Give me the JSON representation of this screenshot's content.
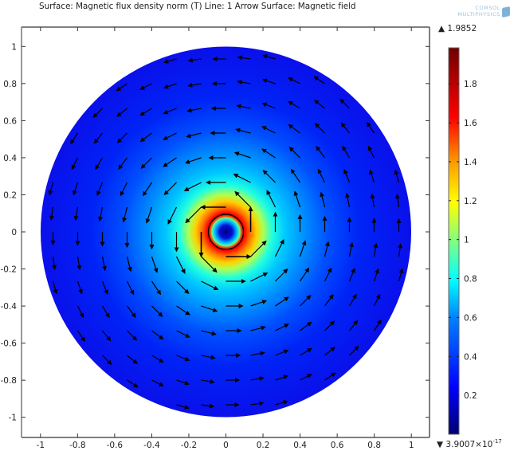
{
  "title": "Surface: Magnetic flux density norm (T)  Line: 1  Arrow Surface: Magnetic field",
  "logo": {
    "line1": "COMSOL",
    "line2": "MULTIPHYSICS"
  },
  "colorbar": {
    "max_label": "1.9852",
    "min_label_mantissa": "3.9007×10",
    "min_label_exponent": "-17",
    "max_marker": "▲",
    "min_marker": "▼",
    "ticks": [
      "0.2",
      "0.4",
      "0.6",
      "0.8",
      "1",
      "1.2",
      "1.4",
      "1.6",
      "1.8"
    ],
    "colormap": "rainbow",
    "stops": [
      "#000080",
      "#0000ff",
      "#0080ff",
      "#00ffff",
      "#80ff80",
      "#ffff00",
      "#ff8000",
      "#ff0000",
      "#800000"
    ]
  },
  "axes": {
    "x_ticks": [
      "-1",
      "-0.8",
      "-0.6",
      "-0.4",
      "-0.2",
      "0",
      "0.2",
      "0.4",
      "0.6",
      "0.8",
      "1"
    ],
    "y_ticks": [
      "1",
      "0.8",
      "0.6",
      "0.4",
      "0.2",
      "0",
      "-0.2",
      "-0.4",
      "-0.6",
      "-0.8",
      "-1"
    ]
  },
  "chart_data": {
    "type": "heatmap",
    "title": "Surface: Magnetic flux density norm (T)  Line: 1  Arrow Surface: Magnetic field",
    "xlabel": "",
    "ylabel": "",
    "xlim": [
      -1.1,
      1.1
    ],
    "ylim": [
      -1.1,
      1.1
    ],
    "x_ticks": [
      -1,
      -0.8,
      -0.6,
      -0.4,
      -0.2,
      0,
      0.2,
      0.4,
      0.6,
      0.8,
      1
    ],
    "y_ticks": [
      -1,
      -0.8,
      -0.6,
      -0.4,
      -0.2,
      0,
      0.2,
      0.4,
      0.6,
      0.8,
      1
    ],
    "domain": {
      "shape": "disk",
      "center": [
        0,
        0
      ],
      "radius": 1.0
    },
    "conductor": {
      "shape": "circle",
      "center": [
        0,
        0
      ],
      "radius": 0.095
    },
    "field": "Magnetic flux density norm (T)",
    "color_range": [
      3.9007e-17,
      1.9852
    ],
    "colorbar_ticks": [
      0.2,
      0.4,
      0.6,
      0.8,
      1.0,
      1.2,
      1.4,
      1.6,
      1.8
    ],
    "profile": [
      {
        "r": 0.0,
        "B": 0.0
      },
      {
        "r": 0.05,
        "B": 0.6
      },
      {
        "r": 0.08,
        "B": 1.2
      },
      {
        "r": 0.095,
        "B": 1.98
      },
      {
        "r": 0.13,
        "B": 1.5
      },
      {
        "r": 0.2,
        "B": 0.95
      },
      {
        "r": 0.3,
        "B": 0.63
      },
      {
        "r": 0.5,
        "B": 0.38
      },
      {
        "r": 0.75,
        "B": 0.25
      },
      {
        "r": 1.0,
        "B": 0.19
      }
    ],
    "arrows": {
      "quantity": "Magnetic field",
      "pattern": "counter-clockwise circulation, magnitude decays ~1/r outside conductor",
      "grid_spacing": 0.1333
    },
    "legend_position": "right"
  }
}
